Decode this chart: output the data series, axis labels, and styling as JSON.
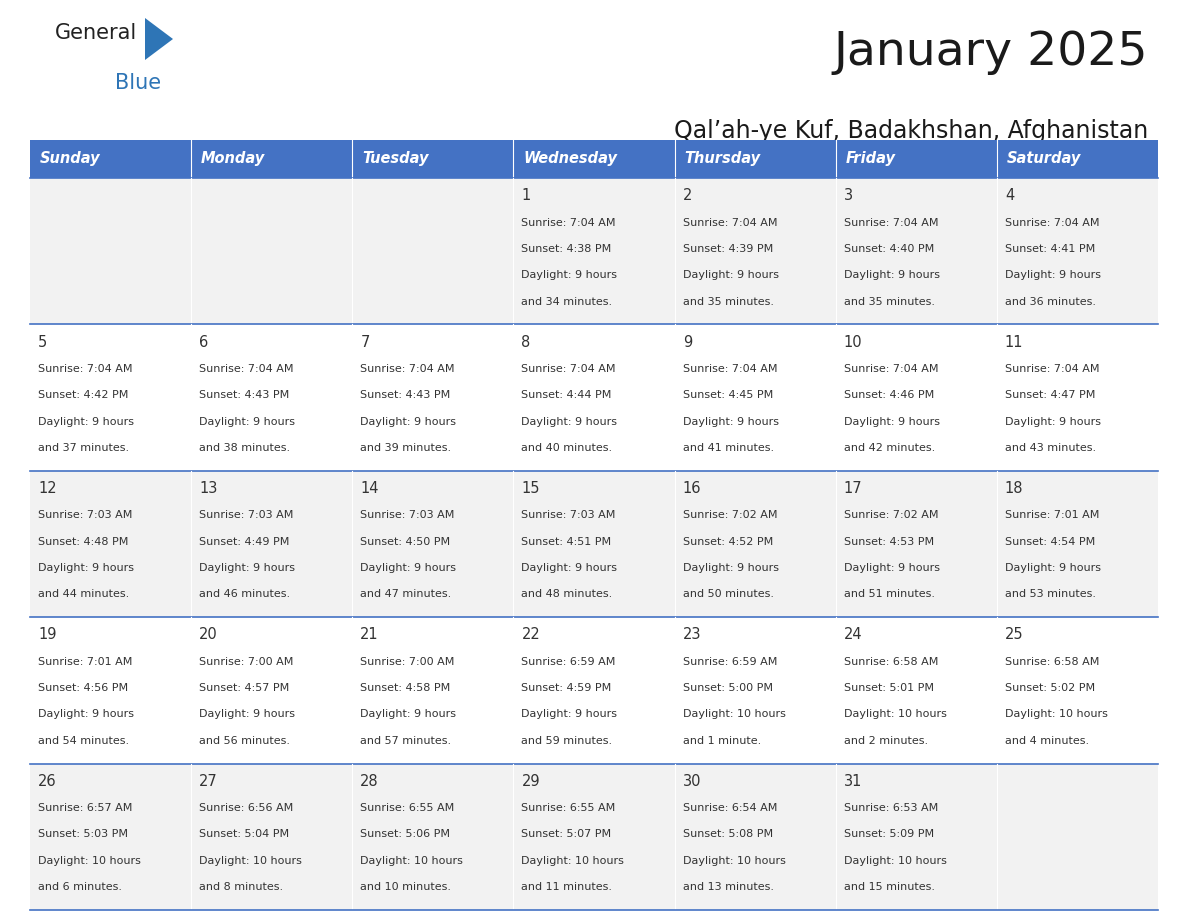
{
  "title": "January 2025",
  "subtitle": "Qal’ah-ye Kuf, Badakhshan, Afghanistan",
  "header_bg": "#4472c4",
  "header_text_color": "#ffffff",
  "row_bg": [
    "#f2f2f2",
    "#ffffff",
    "#f2f2f2",
    "#ffffff",
    "#f2f2f2"
  ],
  "day_headers": [
    "Sunday",
    "Monday",
    "Tuesday",
    "Wednesday",
    "Thursday",
    "Friday",
    "Saturday"
  ],
  "days": [
    {
      "day": 1,
      "col": 3,
      "row": 0,
      "sunrise": "7:04 AM",
      "sunset": "4:38 PM",
      "daylight_h": "9 hours",
      "daylight_m": "34 minutes."
    },
    {
      "day": 2,
      "col": 4,
      "row": 0,
      "sunrise": "7:04 AM",
      "sunset": "4:39 PM",
      "daylight_h": "9 hours",
      "daylight_m": "35 minutes."
    },
    {
      "day": 3,
      "col": 5,
      "row": 0,
      "sunrise": "7:04 AM",
      "sunset": "4:40 PM",
      "daylight_h": "9 hours",
      "daylight_m": "35 minutes."
    },
    {
      "day": 4,
      "col": 6,
      "row": 0,
      "sunrise": "7:04 AM",
      "sunset": "4:41 PM",
      "daylight_h": "9 hours",
      "daylight_m": "36 minutes."
    },
    {
      "day": 5,
      "col": 0,
      "row": 1,
      "sunrise": "7:04 AM",
      "sunset": "4:42 PM",
      "daylight_h": "9 hours",
      "daylight_m": "37 minutes."
    },
    {
      "day": 6,
      "col": 1,
      "row": 1,
      "sunrise": "7:04 AM",
      "sunset": "4:43 PM",
      "daylight_h": "9 hours",
      "daylight_m": "38 minutes."
    },
    {
      "day": 7,
      "col": 2,
      "row": 1,
      "sunrise": "7:04 AM",
      "sunset": "4:43 PM",
      "daylight_h": "9 hours",
      "daylight_m": "39 minutes."
    },
    {
      "day": 8,
      "col": 3,
      "row": 1,
      "sunrise": "7:04 AM",
      "sunset": "4:44 PM",
      "daylight_h": "9 hours",
      "daylight_m": "40 minutes."
    },
    {
      "day": 9,
      "col": 4,
      "row": 1,
      "sunrise": "7:04 AM",
      "sunset": "4:45 PM",
      "daylight_h": "9 hours",
      "daylight_m": "41 minutes."
    },
    {
      "day": 10,
      "col": 5,
      "row": 1,
      "sunrise": "7:04 AM",
      "sunset": "4:46 PM",
      "daylight_h": "9 hours",
      "daylight_m": "42 minutes."
    },
    {
      "day": 11,
      "col": 6,
      "row": 1,
      "sunrise": "7:04 AM",
      "sunset": "4:47 PM",
      "daylight_h": "9 hours",
      "daylight_m": "43 minutes."
    },
    {
      "day": 12,
      "col": 0,
      "row": 2,
      "sunrise": "7:03 AM",
      "sunset": "4:48 PM",
      "daylight_h": "9 hours",
      "daylight_m": "44 minutes."
    },
    {
      "day": 13,
      "col": 1,
      "row": 2,
      "sunrise": "7:03 AM",
      "sunset": "4:49 PM",
      "daylight_h": "9 hours",
      "daylight_m": "46 minutes."
    },
    {
      "day": 14,
      "col": 2,
      "row": 2,
      "sunrise": "7:03 AM",
      "sunset": "4:50 PM",
      "daylight_h": "9 hours",
      "daylight_m": "47 minutes."
    },
    {
      "day": 15,
      "col": 3,
      "row": 2,
      "sunrise": "7:03 AM",
      "sunset": "4:51 PM",
      "daylight_h": "9 hours",
      "daylight_m": "48 minutes."
    },
    {
      "day": 16,
      "col": 4,
      "row": 2,
      "sunrise": "7:02 AM",
      "sunset": "4:52 PM",
      "daylight_h": "9 hours",
      "daylight_m": "50 minutes."
    },
    {
      "day": 17,
      "col": 5,
      "row": 2,
      "sunrise": "7:02 AM",
      "sunset": "4:53 PM",
      "daylight_h": "9 hours",
      "daylight_m": "51 minutes."
    },
    {
      "day": 18,
      "col": 6,
      "row": 2,
      "sunrise": "7:01 AM",
      "sunset": "4:54 PM",
      "daylight_h": "9 hours",
      "daylight_m": "53 minutes."
    },
    {
      "day": 19,
      "col": 0,
      "row": 3,
      "sunrise": "7:01 AM",
      "sunset": "4:56 PM",
      "daylight_h": "9 hours",
      "daylight_m": "54 minutes."
    },
    {
      "day": 20,
      "col": 1,
      "row": 3,
      "sunrise": "7:00 AM",
      "sunset": "4:57 PM",
      "daylight_h": "9 hours",
      "daylight_m": "56 minutes."
    },
    {
      "day": 21,
      "col": 2,
      "row": 3,
      "sunrise": "7:00 AM",
      "sunset": "4:58 PM",
      "daylight_h": "9 hours",
      "daylight_m": "57 minutes."
    },
    {
      "day": 22,
      "col": 3,
      "row": 3,
      "sunrise": "6:59 AM",
      "sunset": "4:59 PM",
      "daylight_h": "9 hours",
      "daylight_m": "59 minutes."
    },
    {
      "day": 23,
      "col": 4,
      "row": 3,
      "sunrise": "6:59 AM",
      "sunset": "5:00 PM",
      "daylight_h": "10 hours",
      "daylight_m": "1 minute."
    },
    {
      "day": 24,
      "col": 5,
      "row": 3,
      "sunrise": "6:58 AM",
      "sunset": "5:01 PM",
      "daylight_h": "10 hours",
      "daylight_m": "2 minutes."
    },
    {
      "day": 25,
      "col": 6,
      "row": 3,
      "sunrise": "6:58 AM",
      "sunset": "5:02 PM",
      "daylight_h": "10 hours",
      "daylight_m": "4 minutes."
    },
    {
      "day": 26,
      "col": 0,
      "row": 4,
      "sunrise": "6:57 AM",
      "sunset": "5:03 PM",
      "daylight_h": "10 hours",
      "daylight_m": "6 minutes."
    },
    {
      "day": 27,
      "col": 1,
      "row": 4,
      "sunrise": "6:56 AM",
      "sunset": "5:04 PM",
      "daylight_h": "10 hours",
      "daylight_m": "8 minutes."
    },
    {
      "day": 28,
      "col": 2,
      "row": 4,
      "sunrise": "6:55 AM",
      "sunset": "5:06 PM",
      "daylight_h": "10 hours",
      "daylight_m": "10 minutes."
    },
    {
      "day": 29,
      "col": 3,
      "row": 4,
      "sunrise": "6:55 AM",
      "sunset": "5:07 PM",
      "daylight_h": "10 hours",
      "daylight_m": "11 minutes."
    },
    {
      "day": 30,
      "col": 4,
      "row": 4,
      "sunrise": "6:54 AM",
      "sunset": "5:08 PM",
      "daylight_h": "10 hours",
      "daylight_m": "13 minutes."
    },
    {
      "day": 31,
      "col": 5,
      "row": 4,
      "sunrise": "6:53 AM",
      "sunset": "5:09 PM",
      "daylight_h": "10 hours",
      "daylight_m": "15 minutes."
    }
  ]
}
